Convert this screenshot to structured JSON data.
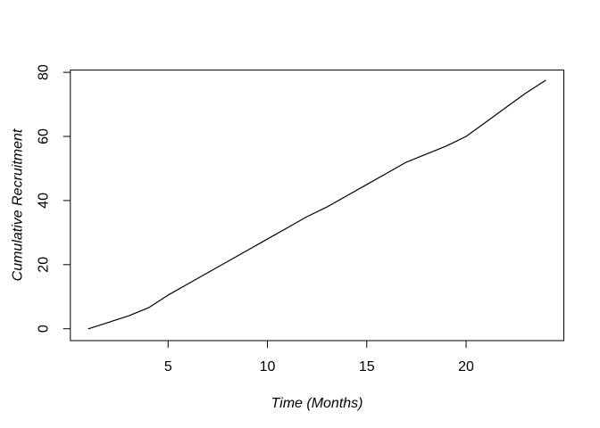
{
  "figure": {
    "background": "#ffffff",
    "axis_color": "#000000",
    "text_color": "#000000"
  },
  "chart_data": {
    "type": "line",
    "title": "",
    "xlabel": "Time (Months)",
    "ylabel": "Cumulative Recruitment",
    "x": [
      1,
      2,
      3,
      4,
      5,
      6,
      7,
      8,
      9,
      10,
      11,
      12,
      13,
      14,
      15,
      16,
      17,
      18,
      19,
      20,
      21,
      22,
      23,
      24
    ],
    "series": [
      {
        "name": "Cumulative recruitment",
        "color": "#000000",
        "values": [
          0,
          2,
          4,
          6.5,
          10.5,
          14,
          17.5,
          21,
          24.5,
          28,
          31.5,
          35,
          38,
          41.5,
          45,
          48.5,
          52,
          54.5,
          57,
          60,
          64.5,
          69,
          73.5,
          77.5
        ]
      }
    ],
    "xticks": [
      5,
      10,
      15,
      20
    ],
    "yticks": [
      0,
      20,
      40,
      60,
      80
    ],
    "xlim": [
      0.08,
      24.92
    ],
    "ylim": [
      -3.7,
      80.7
    ],
    "grid": false,
    "legend": null,
    "box": true
  }
}
